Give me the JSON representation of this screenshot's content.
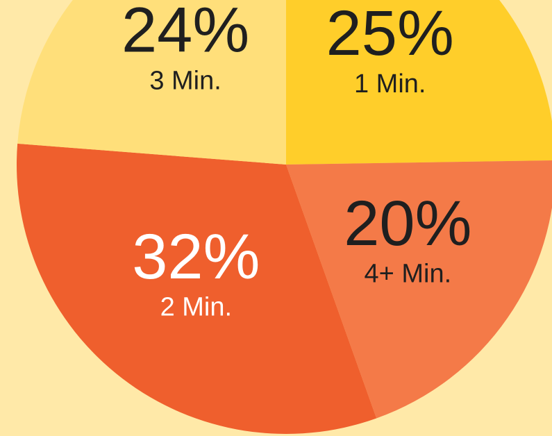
{
  "chart_data": {
    "type": "pie",
    "categories": [
      "1 Min.",
      "4+ Min.",
      "2 Min.",
      "3 Min."
    ],
    "values": [
      25,
      20,
      32,
      24
    ],
    "value_labels": [
      "25%",
      "20%",
      "32%",
      "24%"
    ],
    "colors": [
      "#ffce2a",
      "#f47a48",
      "#ef5f2d",
      "#ffdf7a"
    ],
    "label_colors": [
      "#1f1f1f",
      "#1f1f1f",
      "#ffffff",
      "#1f1f1f"
    ]
  }
}
